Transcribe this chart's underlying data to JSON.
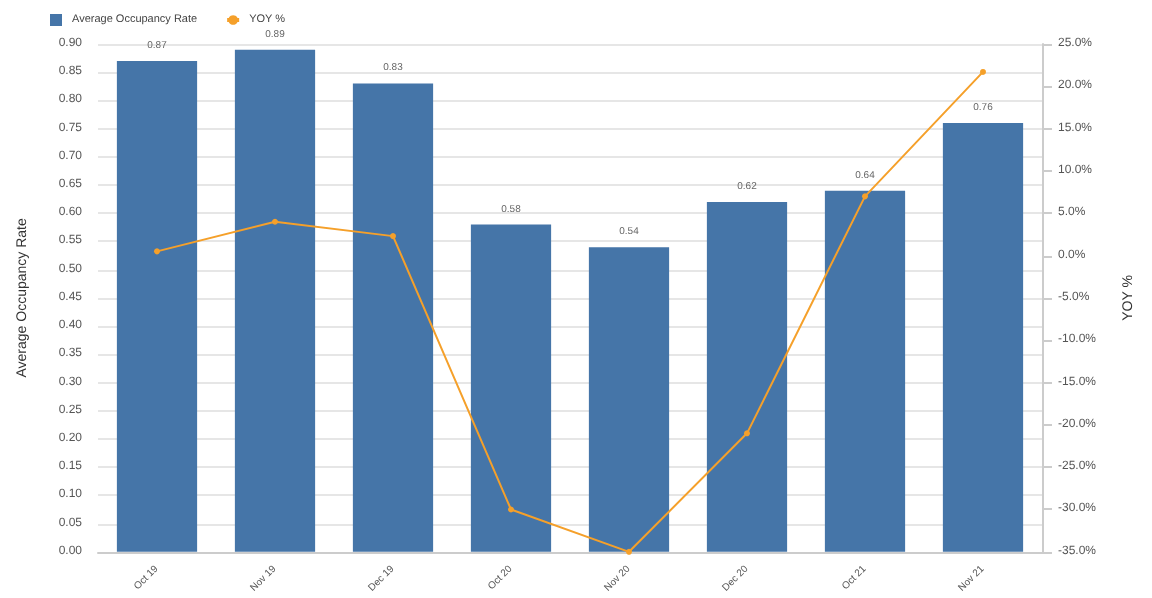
{
  "chart_data": {
    "type": "bar",
    "ylabel": "Average Occupancy Rate",
    "y2label": "YOY %",
    "categories": [
      "Oct 19",
      "Nov 19",
      "Dec 19",
      "Oct 20",
      "Nov 20",
      "Dec 20",
      "Oct 21",
      "Nov 21"
    ],
    "series": [
      {
        "name": "Average Occupancy Rate",
        "color": "#4575a8",
        "values": [
          0.87,
          0.89,
          0.83,
          0.58,
          0.54,
          0.62,
          0.64,
          0.76
        ],
        "value_labels": [
          "0.87",
          "0.89",
          "0.83",
          "0.58",
          "0.54",
          "0.62",
          "0.64",
          "0.76"
        ]
      },
      {
        "name": "YOY %",
        "type": "line",
        "axis": "y2",
        "color": "#f5a02a",
        "marker": "circle",
        "values": [
          0.5,
          4.0,
          2.3,
          -30.0,
          -35.0,
          -21.0,
          7.0,
          21.7
        ]
      }
    ],
    "ylim": [
      0,
      0.9
    ],
    "yticks": [
      {
        "value": 0,
        "label": "0.00"
      },
      {
        "value": 0.05,
        "label": "0.05"
      },
      {
        "value": 0.1,
        "label": "0.10"
      },
      {
        "value": 0.15,
        "label": "0.15"
      },
      {
        "value": 0.2,
        "label": "0.20"
      },
      {
        "value": 0.25,
        "label": "0.25"
      },
      {
        "value": 0.3,
        "label": "0.30"
      },
      {
        "value": 0.35,
        "label": "0.35"
      },
      {
        "value": 0.4,
        "label": "0.40"
      },
      {
        "value": 0.45,
        "label": "0.45"
      },
      {
        "value": 0.5,
        "label": "0.50"
      },
      {
        "value": 0.55,
        "label": "0.55"
      },
      {
        "value": 0.6,
        "label": "0.60"
      },
      {
        "value": 0.65,
        "label": "0.65"
      },
      {
        "value": 0.7,
        "label": "0.70"
      },
      {
        "value": 0.75,
        "label": "0.75"
      },
      {
        "value": 0.8,
        "label": "0.80"
      },
      {
        "value": 0.85,
        "label": "0.85"
      },
      {
        "value": 0.9,
        "label": "0.90"
      }
    ],
    "y2lim": [
      -35,
      25
    ],
    "y2ticks": [
      {
        "value": -35,
        "label": "-35.0%"
      },
      {
        "value": -30,
        "label": "-30.0%"
      },
      {
        "value": -25,
        "label": "-25.0%"
      },
      {
        "value": -20,
        "label": "-20.0%"
      },
      {
        "value": -15,
        "label": "-15.0%"
      },
      {
        "value": -10,
        "label": "-10.0%"
      },
      {
        "value": -5,
        "label": "-5.0%"
      },
      {
        "value": 0,
        "label": "0.0%"
      },
      {
        "value": 5,
        "label": "5.0%"
      },
      {
        "value": 10,
        "label": "10.0%"
      },
      {
        "value": 15,
        "label": "15.0%"
      },
      {
        "value": 20,
        "label": "20.0%"
      },
      {
        "value": 25,
        "label": "25.0%"
      }
    ],
    "grid": "y",
    "legend": "top left"
  }
}
